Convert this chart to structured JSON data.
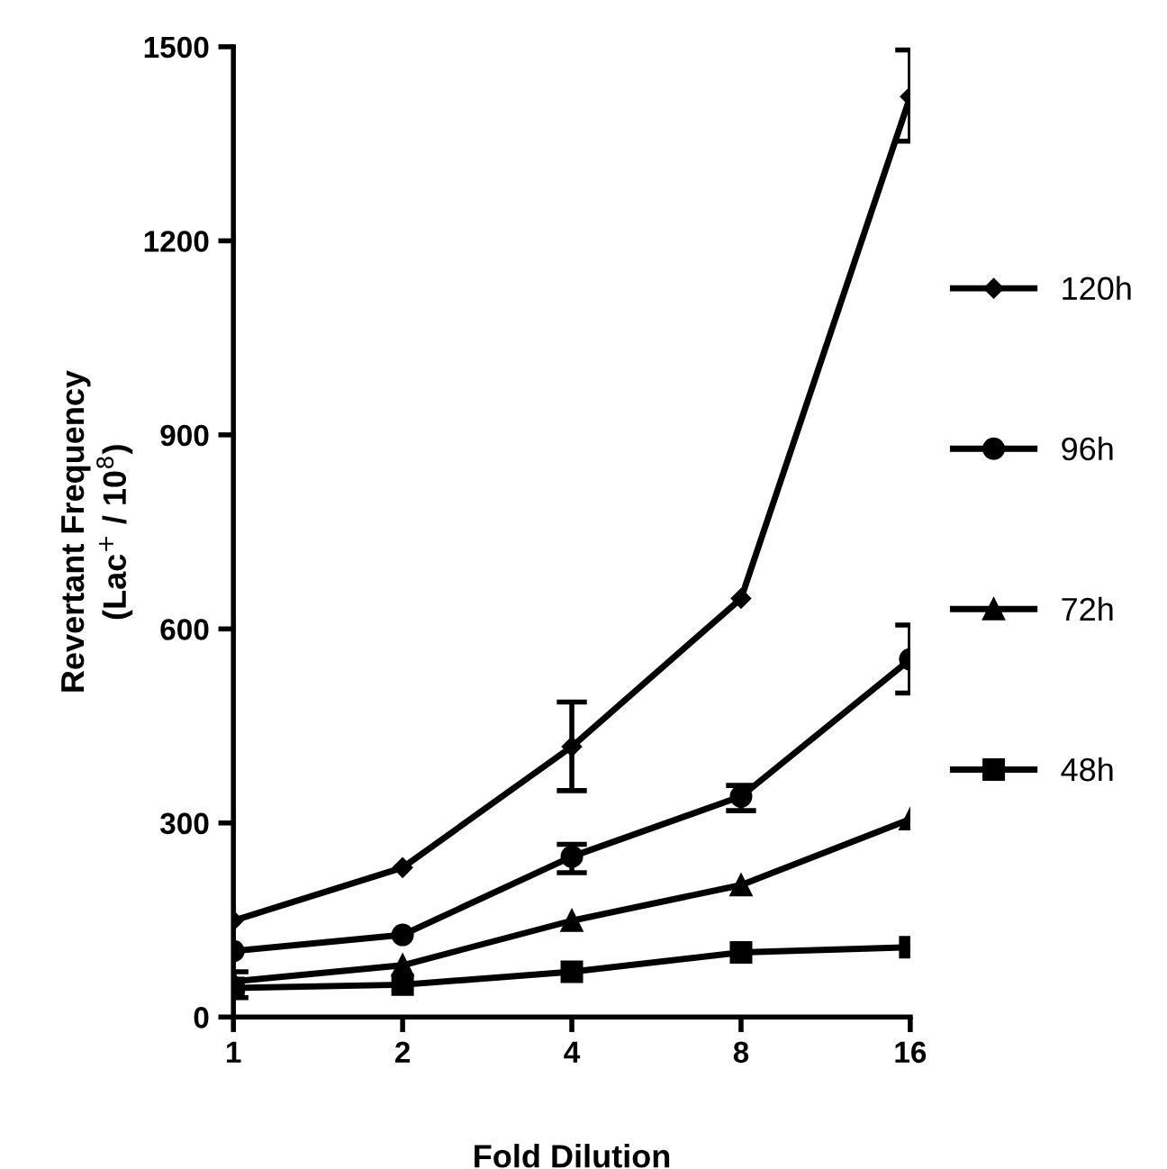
{
  "chart_data": {
    "type": "line",
    "xlabel": "Fold Dilution",
    "ylabel": "Revertant Frequency\n(Lac$^{+}$ / 10$^{8}$)",
    "x": [
      1,
      2,
      4,
      8,
      16
    ],
    "log": "x",
    "xlim": [
      1,
      16
    ],
    "xticks": [
      1,
      2,
      4,
      8,
      16
    ],
    "ylim": [
      0,
      1500
    ],
    "yticks": [
      0,
      300,
      600,
      900,
      1200,
      1500
    ],
    "grid": false,
    "legend": "right",
    "line_style": "solid",
    "series": [
      {
        "name": "120h",
        "color": "#000000",
        "marker": "diamond",
        "values": [
          149,
          231,
          418,
          647,
          1423
        ],
        "errors": [
          null,
          null,
          [
            350,
            487
          ],
          null,
          [
            1354,
            1495
          ]
        ]
      },
      {
        "name": "96h",
        "color": "#000000",
        "marker": "circle",
        "values": [
          102,
          127,
          248,
          341,
          553
        ],
        "errors": [
          null,
          null,
          [
            223,
            267
          ],
          [
            319,
            358
          ],
          [
            501,
            606
          ]
        ]
      },
      {
        "name": "72h",
        "color": "#000000",
        "marker": "triangle",
        "values": [
          55,
          80,
          149,
          204,
          306
        ]
      },
      {
        "name": "48h",
        "color": "#000000",
        "marker": "square",
        "values": [
          45,
          50,
          70,
          100,
          108
        ],
        "errors": [
          [
            30,
            70
          ],
          null,
          null,
          null,
          null
        ]
      }
    ]
  }
}
